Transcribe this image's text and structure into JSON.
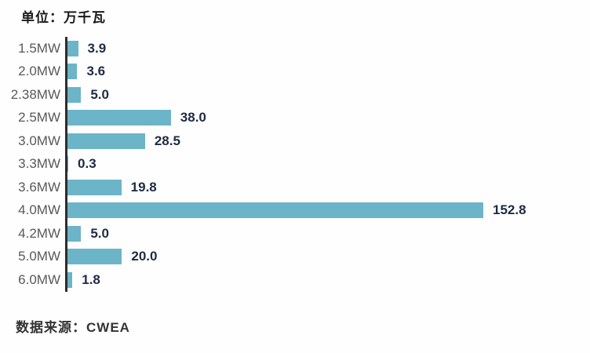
{
  "title": "单位：万千瓦",
  "source": "数据来源：CWEA",
  "chart_data": {
    "type": "bar",
    "orientation": "horizontal",
    "title": "单位：万千瓦",
    "xlabel": "",
    "ylabel": "",
    "xlim": [
      0,
      160
    ],
    "grid": false,
    "legend": "none",
    "categories": [
      "1.5MW",
      "2.0MW",
      "2.38MW",
      "2.5MW",
      "3.0MW",
      "3.3MW",
      "3.6MW",
      "4.0MW",
      "4.2MW",
      "5.0MW",
      "6.0MW"
    ],
    "values": [
      3.9,
      3.6,
      5.0,
      38.0,
      28.5,
      0.3,
      19.8,
      152.8,
      5.0,
      20.0,
      1.8
    ],
    "value_labels": [
      "3.9",
      "3.6",
      "5.0",
      "38.0",
      "28.5",
      "0.3",
      "19.8",
      "152.8",
      "5.0",
      "20.0",
      "1.8"
    ],
    "max_value": 152.8,
    "bar_color": "#6cb4c8",
    "value_label_color": "#1f2a44",
    "category_label_color": "#595959",
    "axis_color": "#2d2d2d",
    "source_note": "数据来源：CWEA"
  }
}
